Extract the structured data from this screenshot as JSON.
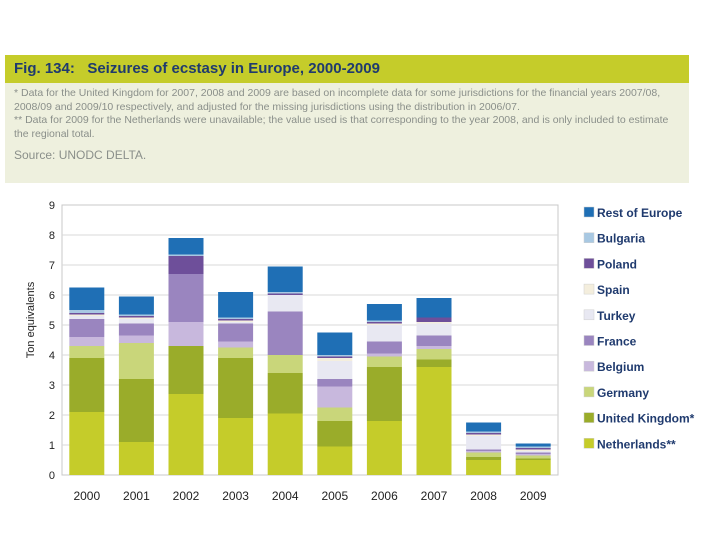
{
  "figure": {
    "fig_label": "Fig. 134:",
    "title": "Seizures of ecstasy in Europe, 2000-2009",
    "note1": "* Data for the United Kingdom for 2007, 2008 and 2009 are based on incomplete data for some jurisdictions for the financial years 2007/08, 2008/09 and 2009/10 respectively, and adjusted for the missing jurisdictions using the distribution in 2006/07.",
    "note2": "** Data for 2009 for the Netherlands were unavailable; the value used is that corresponding to the year 2008, and is only included to estimate the regional total.",
    "source": "Source: UNODC DELTA."
  },
  "chart_data": {
    "type": "bar",
    "stacked": true,
    "title": "Seizures of ecstasy in Europe, 2000-2009",
    "xlabel": "",
    "ylabel": "Ton equivalents",
    "ylim": [
      0,
      9
    ],
    "yticks": [
      "0",
      "1",
      "2",
      "3",
      "4",
      "5",
      "6",
      "7",
      "8",
      "9"
    ],
    "grid": true,
    "legend_position": "right",
    "categories": [
      "2000",
      "2001",
      "2002",
      "2003",
      "2004",
      "2005",
      "2006",
      "2007",
      "2008",
      "2009"
    ],
    "series": [
      {
        "name": "Netherlands**",
        "color": "#c5cc2a",
        "values": [
          2.1,
          1.1,
          2.7,
          1.9,
          2.05,
          0.95,
          1.8,
          3.6,
          0.5,
          0.5
        ]
      },
      {
        "name": "United Kingdom*",
        "color": "#9aac2a",
        "values": [
          1.8,
          2.1,
          1.6,
          2.0,
          1.35,
          0.85,
          1.8,
          0.25,
          0.1,
          0.05
        ]
      },
      {
        "name": "Germany",
        "color": "#c9d67a",
        "values": [
          0.4,
          1.2,
          0.0,
          0.35,
          0.6,
          0.45,
          0.35,
          0.35,
          0.15,
          0.1
        ]
      },
      {
        "name": "Belgium",
        "color": "#c8b8dd",
        "values": [
          0.3,
          0.25,
          0.8,
          0.2,
          0.0,
          0.7,
          0.1,
          0.1,
          0.05,
          0.05
        ]
      },
      {
        "name": "France",
        "color": "#9a85bf",
        "values": [
          0.6,
          0.4,
          1.6,
          0.6,
          1.45,
          0.25,
          0.4,
          0.35,
          0.05,
          0.05
        ]
      },
      {
        "name": "Turkey",
        "color": "#e8e8f2",
        "values": [
          0.1,
          0.15,
          0.0,
          0.05,
          0.55,
          0.6,
          0.55,
          0.4,
          0.45,
          0.05
        ]
      },
      {
        "name": "Spain",
        "color": "#f4eedd",
        "values": [
          0.05,
          0.05,
          0.0,
          0.05,
          0.0,
          0.1,
          0.05,
          0.05,
          0.05,
          0.05
        ]
      },
      {
        "name": "Poland",
        "color": "#6e4f9a",
        "values": [
          0.05,
          0.05,
          0.6,
          0.05,
          0.05,
          0.05,
          0.05,
          0.15,
          0.05,
          0.05
        ]
      },
      {
        "name": "Bulgaria",
        "color": "#a8c8e2",
        "values": [
          0.1,
          0.05,
          0.05,
          0.05,
          0.05,
          0.05,
          0.05,
          0.0,
          0.05,
          0.05
        ]
      },
      {
        "name": "Rest of Europe",
        "color": "#1f6fb5",
        "values": [
          0.75,
          0.6,
          0.55,
          0.85,
          0.85,
          0.75,
          0.55,
          0.65,
          0.3,
          0.1
        ]
      }
    ]
  }
}
